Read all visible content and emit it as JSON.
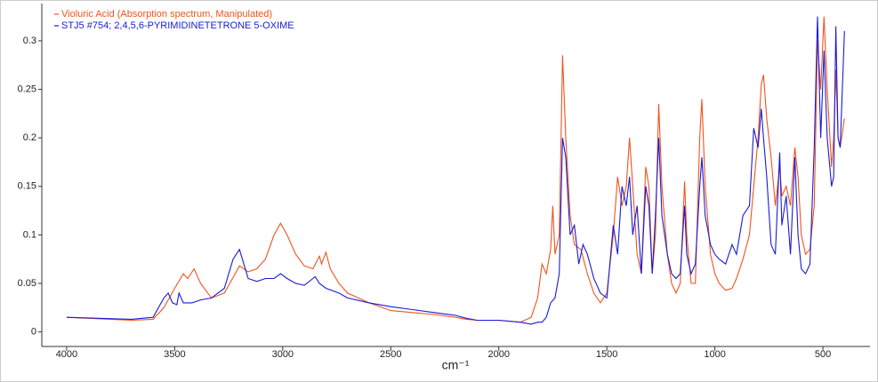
{
  "chart_data": {
    "type": "line",
    "xlabel": "cm⁻¹",
    "xlim": [
      4115,
      282
    ],
    "ylim": [
      -0.015,
      0.3375
    ],
    "xticks": [
      4000,
      3500,
      3000,
      2500,
      2000,
      1500,
      1000,
      500
    ],
    "yticks": [
      0,
      0.05,
      0.1,
      0.15,
      0.2,
      0.25,
      0.3
    ],
    "legend": "upper-left",
    "series": [
      {
        "name": "Violuric Acid (Absorption spectrum, Manipulated)",
        "color": "#f0541e",
        "x": [
          4000,
          3700,
          3600,
          3550,
          3500,
          3460,
          3440,
          3410,
          3380,
          3330,
          3270,
          3220,
          3200,
          3160,
          3120,
          3080,
          3040,
          3010,
          2980,
          2940,
          2900,
          2860,
          2830,
          2820,
          2800,
          2780,
          2740,
          2700,
          2600,
          2500,
          2400,
          2300,
          2200,
          2150,
          2100,
          2000,
          1900,
          1850,
          1820,
          1800,
          1780,
          1760,
          1750,
          1740,
          1720,
          1705,
          1690,
          1670,
          1650,
          1620,
          1590,
          1560,
          1530,
          1500,
          1470,
          1450,
          1430,
          1410,
          1395,
          1380,
          1360,
          1340,
          1320,
          1305,
          1290,
          1275,
          1260,
          1245,
          1220,
          1200,
          1180,
          1160,
          1140,
          1130,
          1110,
          1090,
          1070,
          1060,
          1045,
          1020,
          1000,
          980,
          950,
          920,
          900,
          870,
          840,
          820,
          800,
          785,
          775,
          760,
          740,
          720,
          700,
          690,
          670,
          650,
          630,
          615,
          600,
          580,
          560,
          540,
          525,
          510,
          495,
          480,
          460,
          450,
          440,
          430,
          420,
          400
        ],
        "values": [
          0.015,
          0.012,
          0.013,
          0.025,
          0.045,
          0.06,
          0.055,
          0.065,
          0.05,
          0.035,
          0.04,
          0.06,
          0.068,
          0.062,
          0.065,
          0.075,
          0.1,
          0.112,
          0.1,
          0.08,
          0.068,
          0.065,
          0.078,
          0.07,
          0.082,
          0.065,
          0.05,
          0.04,
          0.03,
          0.022,
          0.02,
          0.018,
          0.015,
          0.013,
          0.012,
          0.012,
          0.01,
          0.015,
          0.035,
          0.07,
          0.06,
          0.085,
          0.13,
          0.08,
          0.1,
          0.285,
          0.2,
          0.12,
          0.09,
          0.085,
          0.06,
          0.04,
          0.03,
          0.04,
          0.1,
          0.16,
          0.13,
          0.15,
          0.2,
          0.15,
          0.08,
          0.06,
          0.17,
          0.15,
          0.06,
          0.1,
          0.235,
          0.15,
          0.08,
          0.05,
          0.04,
          0.05,
          0.155,
          0.1,
          0.05,
          0.05,
          0.2,
          0.24,
          0.15,
          0.08,
          0.06,
          0.05,
          0.043,
          0.045,
          0.055,
          0.075,
          0.1,
          0.15,
          0.2,
          0.255,
          0.265,
          0.22,
          0.18,
          0.13,
          0.17,
          0.14,
          0.15,
          0.13,
          0.19,
          0.16,
          0.1,
          0.08,
          0.085,
          0.13,
          0.3,
          0.25,
          0.325,
          0.25,
          0.17,
          0.2,
          0.27,
          0.2,
          0.19,
          0.22
        ]
      },
      {
        "name": "STJ5 #754; 2,4,5,6-PYRIMIDINETETRONE 5-OXIME",
        "color": "#1a1ad6",
        "x": [
          4000,
          3700,
          3600,
          3550,
          3530,
          3510,
          3490,
          3480,
          3460,
          3420,
          3380,
          3330,
          3270,
          3230,
          3200,
          3180,
          3160,
          3120,
          3080,
          3040,
          3010,
          2980,
          2940,
          2900,
          2860,
          2850,
          2830,
          2800,
          2740,
          2700,
          2600,
          2500,
          2400,
          2300,
          2200,
          2150,
          2100,
          2000,
          1900,
          1850,
          1820,
          1800,
          1780,
          1760,
          1740,
          1720,
          1705,
          1690,
          1670,
          1650,
          1630,
          1610,
          1590,
          1560,
          1530,
          1500,
          1470,
          1450,
          1430,
          1410,
          1395,
          1380,
          1360,
          1340,
          1320,
          1305,
          1290,
          1275,
          1260,
          1245,
          1220,
          1200,
          1180,
          1160,
          1140,
          1130,
          1110,
          1090,
          1070,
          1060,
          1045,
          1020,
          1000,
          980,
          950,
          920,
          900,
          870,
          840,
          820,
          800,
          785,
          775,
          760,
          740,
          720,
          700,
          690,
          670,
          650,
          630,
          615,
          600,
          580,
          560,
          540,
          525,
          510,
          495,
          480,
          460,
          450,
          440,
          430,
          420,
          400
        ],
        "values": [
          0.015,
          0.013,
          0.015,
          0.035,
          0.04,
          0.03,
          0.028,
          0.04,
          0.03,
          0.03,
          0.033,
          0.035,
          0.045,
          0.075,
          0.085,
          0.07,
          0.055,
          0.052,
          0.055,
          0.055,
          0.06,
          0.055,
          0.05,
          0.048,
          0.055,
          0.057,
          0.05,
          0.045,
          0.04,
          0.035,
          0.03,
          0.026,
          0.023,
          0.02,
          0.017,
          0.014,
          0.012,
          0.012,
          0.01,
          0.008,
          0.01,
          0.01,
          0.015,
          0.03,
          0.035,
          0.06,
          0.2,
          0.18,
          0.1,
          0.11,
          0.07,
          0.09,
          0.08,
          0.055,
          0.04,
          0.035,
          0.11,
          0.08,
          0.15,
          0.13,
          0.16,
          0.1,
          0.13,
          0.06,
          0.15,
          0.13,
          0.06,
          0.12,
          0.2,
          0.12,
          0.08,
          0.06,
          0.055,
          0.06,
          0.13,
          0.08,
          0.06,
          0.07,
          0.15,
          0.18,
          0.12,
          0.09,
          0.08,
          0.075,
          0.07,
          0.09,
          0.08,
          0.12,
          0.13,
          0.21,
          0.19,
          0.23,
          0.2,
          0.16,
          0.09,
          0.08,
          0.185,
          0.11,
          0.14,
          0.08,
          0.18,
          0.1,
          0.065,
          0.06,
          0.07,
          0.19,
          0.325,
          0.2,
          0.29,
          0.2,
          0.15,
          0.16,
          0.315,
          0.2,
          0.19,
          0.31
        ]
      }
    ]
  }
}
